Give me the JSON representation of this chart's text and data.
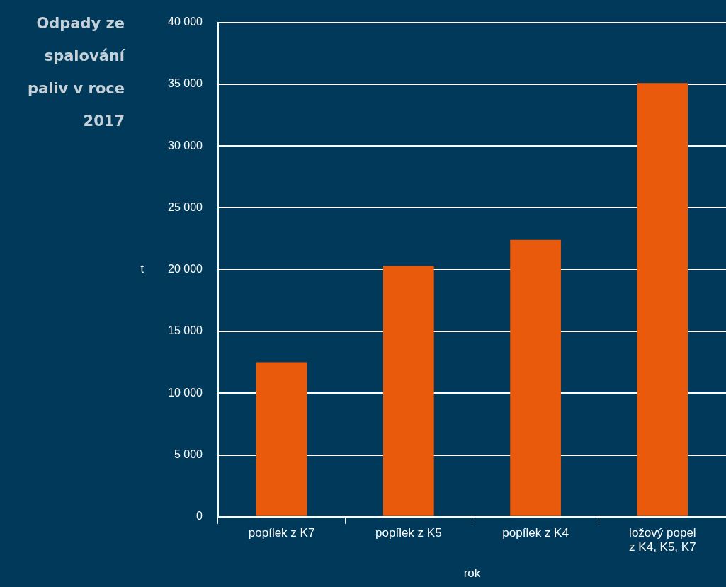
{
  "chart_data": {
    "type": "bar",
    "title": "Odpady ze spalování paliv v roce 2017",
    "xlabel": "rok",
    "ylabel": "t",
    "categories": [
      "popílek z K7",
      "popílek z K5",
      "popílek z K4",
      "ložový popel\nz K4, K5, K7"
    ],
    "values": [
      12500,
      20300,
      22400,
      35100
    ],
    "color": "#e95a0c",
    "ylim": [
      0,
      40000
    ],
    "yticks": [
      {
        "value": 0,
        "label": "0"
      },
      {
        "value": 5000,
        "label": "5 000"
      },
      {
        "value": 10000,
        "label": "10 000"
      },
      {
        "value": 15000,
        "label": "15 000"
      },
      {
        "value": 20000,
        "label": "20 000"
      },
      {
        "value": 25000,
        "label": "25 000"
      },
      {
        "value": 30000,
        "label": "30 000"
      },
      {
        "value": 35000,
        "label": "35 000"
      },
      {
        "value": 40000,
        "label": "40 000"
      }
    ],
    "grid": "y",
    "legend": false
  }
}
